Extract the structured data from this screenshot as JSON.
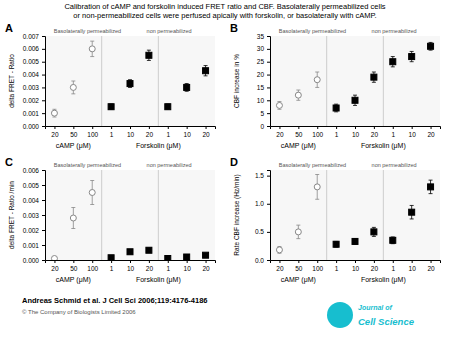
{
  "chart_data": [
    {
      "type": "scatter",
      "title": "A",
      "ylabel": "delta FRET - Ratio",
      "xlabel": [
        "cAMP (μM)",
        "Forskolin (μM)"
      ],
      "categories": [
        "20",
        "50",
        "100",
        "1",
        "10",
        "20",
        "1",
        "10",
        "20"
      ],
      "ylim": [
        0.0,
        0.007
      ],
      "yticks": [
        {
          "value": 0.0,
          "label": "0.000"
        },
        {
          "value": 0.001,
          "label": "0.001"
        },
        {
          "value": 0.002,
          "label": "0.002"
        },
        {
          "value": 0.003,
          "label": "0.003"
        },
        {
          "value": 0.004,
          "label": "0.004"
        },
        {
          "value": 0.005,
          "label": "0.005"
        },
        {
          "value": 0.006,
          "label": "0.006"
        },
        {
          "value": 0.007,
          "label": "0.007"
        }
      ],
      "grid": false,
      "series": [
        {
          "color": "#888888",
          "marker": "open-circle",
          "values": [
            0.001,
            0.003,
            0.006,
            null,
            null,
            null,
            null,
            null,
            null
          ],
          "errors": [
            0.0003,
            0.0005,
            0.0006,
            null,
            null,
            null,
            null,
            null,
            null
          ]
        },
        {
          "color": "black",
          "marker": "square",
          "values": [
            null,
            null,
            null,
            0.0015,
            0.0033,
            0.0055,
            0.0015,
            0.003,
            0.0043
          ],
          "errors": [
            null,
            null,
            null,
            0.0002,
            0.0003,
            0.0004,
            0.0002,
            0.0003,
            0.0004
          ]
        }
      ],
      "annotations": [
        "Basolaterally permeabilized",
        "non permeabilized",
        "Calibration of cAMP and forskolin induced FRET ratio and CBF. Basolaterally permeabilized cells",
        "or non-permeabilized cells were perfused apically with forskolin, or basolaterally with cAMP.",
        "Andreas Schmid et al. J Cell Sci 2006;119:4176-4186",
        "© The Company of Biologists Limited 2006",
        "Journal of",
        "Cell Science"
      ]
    },
    {
      "type": "scatter",
      "title": "B",
      "ylabel": "CBF increase in %",
      "xlabel": [
        "cAMP (μM)",
        "Forskolin (μM)"
      ],
      "categories": [
        "20",
        "50",
        "100",
        "1",
        "10",
        "20",
        "1",
        "10",
        "20"
      ],
      "ylim": [
        0,
        35
      ],
      "yticks": [
        0,
        5,
        10,
        15,
        20,
        25,
        30,
        35
      ],
      "grid": false,
      "series": [
        {
          "color": "#888888",
          "marker": "open-circle",
          "values": [
            8,
            12,
            18,
            null,
            null,
            null,
            null,
            null,
            null
          ],
          "errors": [
            1.5,
            2,
            3,
            null,
            null,
            null,
            null,
            null,
            null
          ]
        },
        {
          "color": "black",
          "marker": "square",
          "values": [
            null,
            null,
            null,
            7,
            10,
            19,
            25,
            27,
            31
          ],
          "errors": [
            null,
            null,
            null,
            1.5,
            2,
            2,
            2,
            2,
            1.5
          ]
        }
      ],
      "annotations": [
        "Basolaterally permeabilized",
        "non permeabilized"
      ]
    },
    {
      "type": "scatter",
      "title": "C",
      "ylabel": "delta FRET - Ratio /min",
      "xlabel": [
        "cAMP (μM)",
        "Forskolin (μM)"
      ],
      "categories": [
        "20",
        "50",
        "100",
        "1",
        "10",
        "20",
        "1",
        "10",
        "20"
      ],
      "ylim": [
        0.0,
        0.006
      ],
      "yticks": [
        {
          "value": 0.0,
          "label": "0.000"
        },
        {
          "value": 0.001,
          "label": "0.001"
        },
        {
          "value": 0.002,
          "label": "0.002"
        },
        {
          "value": 0.003,
          "label": "0.003"
        },
        {
          "value": 0.004,
          "label": "0.004"
        },
        {
          "value": 0.005,
          "label": "0.005"
        },
        {
          "value": 0.006,
          "label": "0.006"
        }
      ],
      "grid": false,
      "series": [
        {
          "color": "#888888",
          "marker": "open-circle",
          "values": [
            0.0001,
            0.0028,
            0.0045,
            null,
            null,
            null,
            null,
            null,
            null
          ],
          "errors": [
            5e-05,
            0.0007,
            0.0008,
            null,
            null,
            null,
            null,
            null,
            null
          ]
        },
        {
          "color": "black",
          "marker": "square",
          "values": [
            null,
            null,
            null,
            0.00015,
            0.00055,
            0.00065,
            0.0001,
            0.0002,
            0.00032
          ],
          "errors": [
            null,
            null,
            null,
            5e-05,
            0.00015,
            0.00015,
            5e-05,
            8e-05,
            0.0001
          ]
        }
      ],
      "annotations": [
        "Basolaterally permeabilized",
        "non permeabilized"
      ]
    },
    {
      "type": "scatter",
      "title": "D",
      "ylabel": "Rate CBF increase (Hz/min)",
      "xlabel": [
        "cAMP (μM)",
        "Forskolin (μM)"
      ],
      "categories": [
        "20",
        "50",
        "100",
        "1",
        "10",
        "20",
        "1",
        "10",
        "20"
      ],
      "ylim": [
        0.0,
        1.6
      ],
      "yticks": [
        {
          "value": 0.0,
          "label": "0.0"
        },
        0.5,
        {
          "value": 1.0,
          "label": "1.0"
        },
        1.5
      ],
      "grid": false,
      "series": [
        {
          "color": "#888888",
          "marker": "open-circle",
          "values": [
            0.18,
            0.5,
            1.3,
            null,
            null,
            null,
            null,
            null,
            null
          ],
          "errors": [
            0.06,
            0.12,
            0.22,
            null,
            null,
            null,
            null,
            null,
            null
          ]
        },
        {
          "color": "black",
          "marker": "square",
          "values": [
            null,
            null,
            null,
            0.28,
            0.33,
            0.5,
            0.35,
            0.85,
            1.3
          ],
          "errors": [
            null,
            null,
            null,
            0.05,
            0.05,
            0.08,
            0.06,
            0.12,
            0.12
          ]
        }
      ],
      "annotations": [
        "Basolaterally permeabilized",
        "non permeabilized"
      ]
    }
  ]
}
